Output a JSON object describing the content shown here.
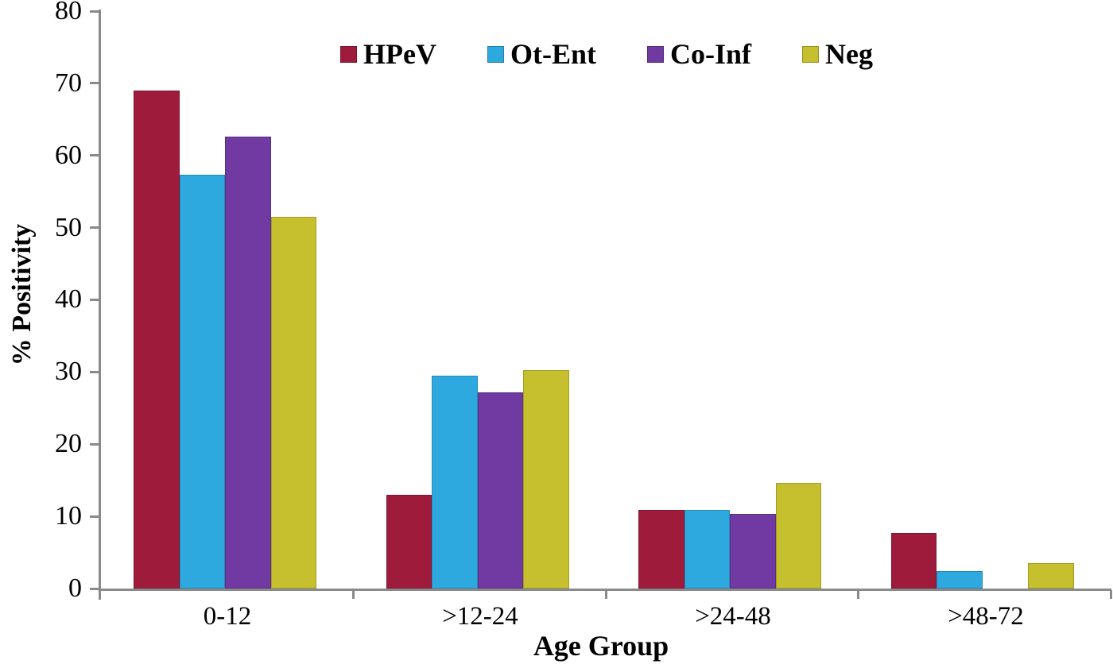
{
  "chart_data": {
    "type": "bar",
    "title": "",
    "xlabel": "Age Group",
    "ylabel": "% Positivity",
    "categories": [
      "0-12",
      ">12-24",
      ">24-48",
      ">48-72"
    ],
    "series": [
      {
        "name": "HPeV",
        "color": "#9f1b3c",
        "values": [
          69.0,
          13.0,
          10.9,
          7.7
        ]
      },
      {
        "name": "Ot-Ent",
        "color": "#2ea9df",
        "values": [
          57.3,
          29.5,
          10.9,
          2.4
        ]
      },
      {
        "name": "Co-Inf",
        "color": "#7139a2",
        "values": [
          62.6,
          27.2,
          10.3,
          0
        ]
      },
      {
        "name": "Neg",
        "color": "#c6c02e",
        "values": [
          51.5,
          30.3,
          14.6,
          3.5
        ]
      }
    ],
    "ylim": [
      0,
      80
    ],
    "yticks": [
      0,
      10,
      20,
      30,
      40,
      50,
      60,
      70,
      80
    ],
    "grid": false,
    "legend_position": "top",
    "axis_color": "#8a8a8a"
  }
}
